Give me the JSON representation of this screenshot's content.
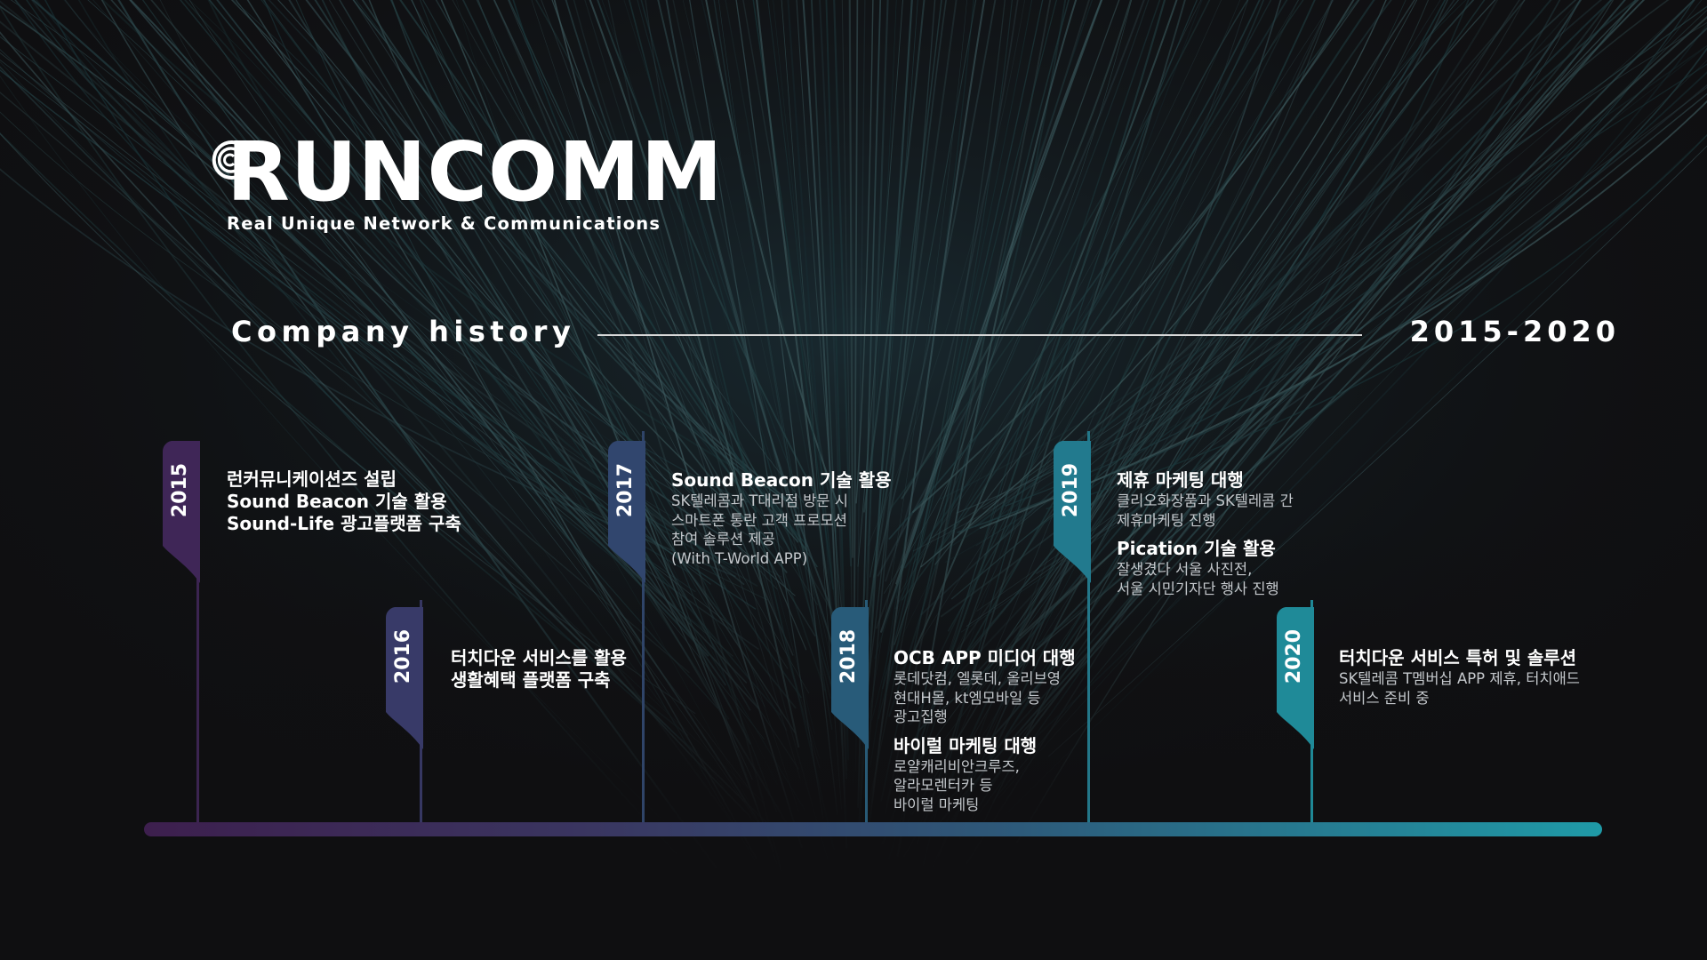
{
  "logo": {
    "wordmark": "RUNCOMM",
    "tagline": "Real Unique Network & Communications"
  },
  "header": {
    "title": "Company history",
    "range": "2015-2020"
  },
  "colors": {
    "background": "#0f0f11",
    "flag_2015": "#3f2657",
    "flag_2016": "#383a68",
    "flag_2017": "#31466e",
    "flag_2018": "#285b79",
    "flag_2019": "#227a8e",
    "flag_2020": "#1f8a98"
  },
  "milestones": [
    {
      "year": "2015",
      "items": [
        {
          "title": "런커뮤니케이션즈 설립"
        },
        {
          "title": "Sound Beacon 기술 활용"
        },
        {
          "title": "Sound-Life 광고플랫폼 구축"
        }
      ]
    },
    {
      "year": "2016",
      "items": [
        {
          "title": "터치다운 서비스를 활용"
        },
        {
          "title": "생활혜택 플랫폼 구축"
        }
      ]
    },
    {
      "year": "2017",
      "items": [
        {
          "title": "Sound Beacon 기술 활용",
          "desc": [
            "SK텔레콤과 T대리점 방문 시",
            "스마트폰 통란 고객 프로모션",
            "참여 솔루션 제공",
            "(With T-World APP)"
          ]
        }
      ]
    },
    {
      "year": "2018",
      "items": [
        {
          "title": "OCB APP 미디어 대행",
          "desc": [
            "롯데닷컴, 엘롯데, 올리브영",
            "현대H몰, kt엠모바일 등",
            "광고집행"
          ]
        },
        {
          "title": "바이럴 마케팅 대행",
          "desc": [
            "로얄캐리비안크루즈,",
            "알라모렌터카 등",
            "바이럴 마케팅"
          ]
        }
      ]
    },
    {
      "year": "2019",
      "items": [
        {
          "title": "제휴 마케팅 대행",
          "desc": [
            "클리오화장품과 SK텔레콤 간",
            "제휴마케팅 진행"
          ]
        },
        {
          "title": "Pication 기술 활용",
          "desc": [
            "잘생겼다 서울 사진전,",
            "서울 시민기자단 행사 진행"
          ]
        }
      ]
    },
    {
      "year": "2020",
      "items": [
        {
          "title": "터치다운 서비스 특허 및 솔루션",
          "desc": [
            "SK텔레콤 T멤버십 APP 제휴, 터치애드",
            "서비스 준비 중"
          ]
        }
      ]
    }
  ]
}
